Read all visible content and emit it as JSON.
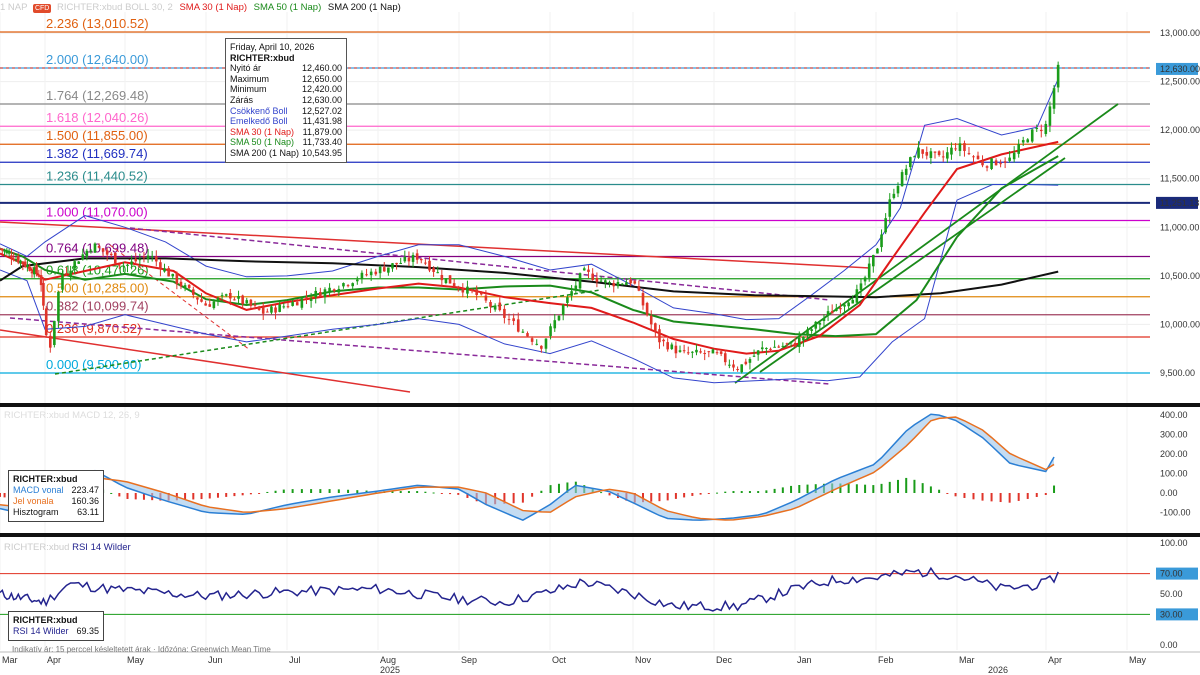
{
  "header": {
    "instrument_prefix": "1 NAP",
    "badge": "CFD",
    "instrument": "RICHTER:xbud",
    "boll": "BOLL 30, 2",
    "sma30": "SMA 30 (1 Nap)",
    "sma50": "SMA 50 (1 Nap)",
    "sma200": "SMA 200 (1 Nap)"
  },
  "colors": {
    "up": "#1a9c1a",
    "down": "#e0342a",
    "sma30": "#e01a1a",
    "sma50": "#1a8a1a",
    "sma200": "#111111",
    "boll": "#3344cc",
    "macd": "#2b7fd4",
    "signal": "#e87020",
    "rsi": "#23238e"
  },
  "fib_levels": [
    {
      "label": "2.236 (13,010.52)",
      "value": 13010.52,
      "color": "#e06010"
    },
    {
      "label": "2.000 (12,640.00)",
      "value": 12640.0,
      "color": "#3a9ad9"
    },
    {
      "label": "1.764 (12,269.48)",
      "value": 12269.48,
      "color": "#888888"
    },
    {
      "label": "1.618 (12,040.26)",
      "value": 12040.26,
      "color": "#ff66cc"
    },
    {
      "label": "1.500 (11,855.00)",
      "value": 11855.0,
      "color": "#e06010"
    },
    {
      "label": "1.382 (11,669.74)",
      "value": 11669.74,
      "color": "#2030c0"
    },
    {
      "label": "1.236 (11,440.52)",
      "value": 11440.52,
      "color": "#2a8c8c"
    },
    {
      "label": "1.000 (11,070.00)",
      "value": 11070.0,
      "color": "#cc00cc"
    },
    {
      "label": "0.764 (10,699.48)",
      "value": 10699.48,
      "color": "#800080"
    },
    {
      "label": "0.618 (10,470.26)",
      "value": 10470.26,
      "color": "#1a9c1a"
    },
    {
      "label": "0.500 (10,285.00)",
      "value": 10285.0,
      "color": "#e08a10"
    },
    {
      "label": "0.382 (10,099.74)",
      "value": 10099.74,
      "color": "#a04060"
    },
    {
      "label": "0.236 (9,870.52)",
      "value": 9870.52,
      "color": "#e03020"
    },
    {
      "label": "0.000 (9,500.00)",
      "value": 9500.0,
      "color": "#00aadd"
    }
  ],
  "tooltip": {
    "date": "Friday, April 10, 2026",
    "symbol": "RICHTER:xbud",
    "rows": [
      {
        "k": "Nyitó ár",
        "v": "12,460.00",
        "c": "#111"
      },
      {
        "k": "Maximum",
        "v": "12,650.00",
        "c": "#111"
      },
      {
        "k": "Minimum",
        "v": "12,420.00",
        "c": "#111"
      },
      {
        "k": "Zárás",
        "v": "12,630.00",
        "c": "#111"
      },
      {
        "k": "Csökkenő Boll",
        "v": "12,527.02",
        "c": "#3344cc"
      },
      {
        "k": "Emelkedő Boll",
        "v": "11,431.98",
        "c": "#3344cc"
      },
      {
        "k": "SMA 30 (1 Nap)",
        "v": "11,879.00",
        "c": "#e01a1a"
      },
      {
        "k": "SMA 50 (1 Nap)",
        "v": "11,733.40",
        "c": "#1a8a1a"
      },
      {
        "k": "SMA 200 (1 Nap)",
        "v": "10,543.95",
        "c": "#111"
      }
    ]
  },
  "price_axis": {
    "ticks": [
      "13,000.00",
      "12,500.00",
      "12,000.00",
      "11,500.00",
      "11,000.00",
      "10,500.00",
      "10,000.00",
      "9,500.00"
    ],
    "last_price": "12,630.00",
    "marker": "11,251.13"
  },
  "macd_panel": {
    "title": "RICHTER:xbud MACD 12, 26, 9",
    "legend_symbol": "RICHTER:xbud",
    "rows": [
      {
        "k": "MACD vonal",
        "v": "223.47",
        "c": "#2b7fd4"
      },
      {
        "k": "Jel vonala",
        "v": "160.36",
        "c": "#e87020"
      },
      {
        "k": "Hisztogram",
        "v": "63.11",
        "c": "#111"
      }
    ],
    "ticks": [
      "400.00",
      "300.00",
      "200.00",
      "100.00",
      "0.00",
      "-100.00"
    ]
  },
  "rsi_panel": {
    "title_prefix": "RICHTER:xbud",
    "title": "RSI 14 Wilder",
    "legend_symbol": "RICHTER:xbud",
    "legend_label": "RSI 14 Wilder",
    "legend_value": "69.35",
    "ticks": [
      "100.00",
      "70.00",
      "50.00",
      "30.00",
      "0.00"
    ],
    "upper_marker": "70.00",
    "lower_marker": "30.00"
  },
  "x_axis": {
    "months": [
      "Mar",
      "Apr",
      "May",
      "Jun",
      "Jul",
      "Aug",
      "Sep",
      "Oct",
      "Nov",
      "Dec",
      "Jan",
      "Feb",
      "Mar",
      "Apr",
      "May"
    ],
    "years": [
      "2025",
      "2026"
    ]
  },
  "footer": "Indikatív ár: 15 perccel késleltetett árak · Időzóna: Greenwich Mean Time",
  "chart_data": {
    "type": "line",
    "title": "RICHTER:xbud",
    "x": [
      "2025-03",
      "2025-04",
      "2025-05",
      "2025-06",
      "2025-07",
      "2025-08",
      "2025-09",
      "2025-10",
      "2025-11",
      "2025-12",
      "2026-01",
      "2026-02",
      "2026-03",
      "2026-04"
    ],
    "series": [
      {
        "name": "Zárás",
        "values": [
          10700,
          9700,
          10650,
          10150,
          10050,
          10400,
          10250,
          10450,
          9850,
          9650,
          10300,
          11850,
          11700,
          12630
        ]
      },
      {
        "name": "SMA 30 (1 Nap)",
        "values": [
          10600,
          10300,
          10450,
          10450,
          10150,
          10300,
          10400,
          10250,
          9950,
          9750,
          10050,
          11300,
          11700,
          11879
        ]
      },
      {
        "name": "SMA 50 (1 Nap)",
        "values": [
          10650,
          10400,
          10350,
          10400,
          10250,
          10300,
          10400,
          10350,
          10050,
          9950,
          10000,
          10900,
          11450,
          11733.4
        ]
      },
      {
        "name": "SMA 200 (1 Nap)",
        "values": [
          10450,
          10520,
          10550,
          10580,
          10560,
          10520,
          10500,
          10420,
          10350,
          10330,
          10300,
          10380,
          10450,
          10543.95
        ]
      }
    ],
    "ylim": [
      9350,
      13100
    ],
    "macd": {
      "macd_last": 223.47,
      "signal_last": 160.36,
      "hist_last": 63.11,
      "ylim": [
        -170,
        400
      ]
    },
    "rsi": {
      "last": 69.35,
      "levels": [
        70,
        30
      ],
      "ylim": [
        0,
        100
      ]
    }
  }
}
